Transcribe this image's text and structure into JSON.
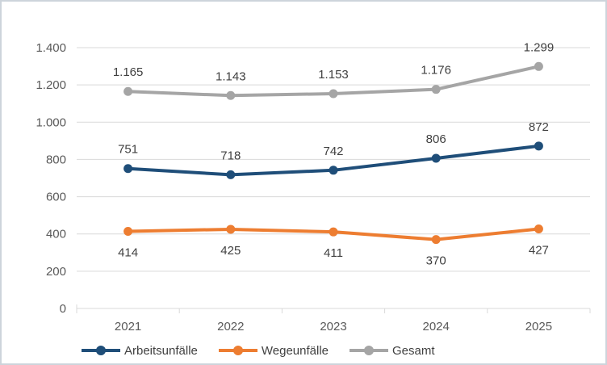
{
  "chart_data": {
    "type": "line",
    "title": "",
    "xlabel": "",
    "ylabel": "",
    "categories": [
      "2021",
      "2022",
      "2023",
      "2024",
      "2025"
    ],
    "series": [
      {
        "name": "Arbeitsunfälle",
        "values": [
          751,
          718,
          742,
          806,
          872
        ],
        "color": "#1F4E79",
        "label_position": "above"
      },
      {
        "name": "Wegeunfälle",
        "values": [
          414,
          425,
          411,
          370,
          427
        ],
        "color": "#ED7D31",
        "label_position": "below"
      },
      {
        "name": "Gesamt",
        "values": [
          1165,
          1143,
          1153,
          1176,
          1299
        ],
        "color": "#A5A5A5",
        "label_position": "above"
      }
    ],
    "data_labels": {
      "Arbeitsunfälle": [
        "751",
        "718",
        "742",
        "806",
        "872"
      ],
      "Wegeunfälle": [
        "414",
        "425",
        "411",
        "370",
        "427"
      ],
      "Gesamt": [
        "1.165",
        "1.143",
        "1.153",
        "1.176",
        "1.299"
      ]
    },
    "y_axis": {
      "min": 0,
      "max": 1400,
      "step": 200,
      "tick_labels": [
        "0",
        "200",
        "400",
        "600",
        "800",
        "1.000",
        "1.200",
        "1.400"
      ]
    },
    "grid": true,
    "legend_position": "bottom-left",
    "colors": {
      "gridline": "#D9D9D9",
      "axis_text": "#595959",
      "label_text": "#404040",
      "frame_border": "#CDD4DB"
    }
  }
}
